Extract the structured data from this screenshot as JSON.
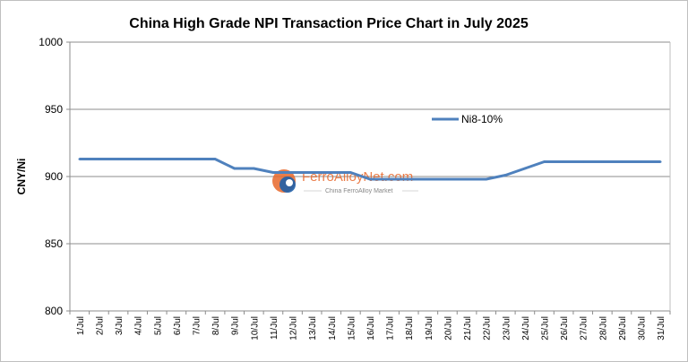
{
  "chart_data": {
    "type": "line",
    "title": "China High Grade NPI Transaction Price Chart in July 2025",
    "xlabel": "",
    "ylabel": "CNY/Ni",
    "ylim": [
      800,
      1000
    ],
    "yticks": [
      "1000",
      "950",
      "900",
      "850",
      "800"
    ],
    "grid": true,
    "legend_position": "top-right",
    "categories": [
      "1/Jul",
      "2/Jul",
      "3/Jul",
      "4/Jul",
      "5/Jul",
      "6/Jul",
      "7/Jul",
      "8/Jul",
      "9/Jul",
      "10/Jul",
      "11/Jul",
      "12/Jul",
      "13/Jul",
      "14/Jul",
      "15/Jul",
      "16/Jul",
      "17/Jul",
      "18/Jul",
      "19/Jul",
      "20/Jul",
      "21/Jul",
      "22/Jul",
      "23/Jul",
      "24/Jul",
      "25/Jul",
      "26/Jul",
      "27/Jul",
      "28/Jul",
      "29/Jul",
      "30/Jul",
      "31/Jul"
    ],
    "series": [
      {
        "name": "Ni8-10%",
        "color": "#4f81bd",
        "values": [
          913,
          913,
          913,
          913,
          913,
          913,
          913,
          913,
          906,
          906,
          903,
          903,
          903,
          903,
          903,
          898,
          898,
          898,
          898,
          898,
          898,
          898,
          901,
          906,
          911,
          911,
          911,
          911,
          911,
          911,
          911
        ]
      }
    ]
  },
  "watermark": {
    "brand": "FerroAlloyNet.com",
    "tagline": "China FerroAlloy Market"
  }
}
